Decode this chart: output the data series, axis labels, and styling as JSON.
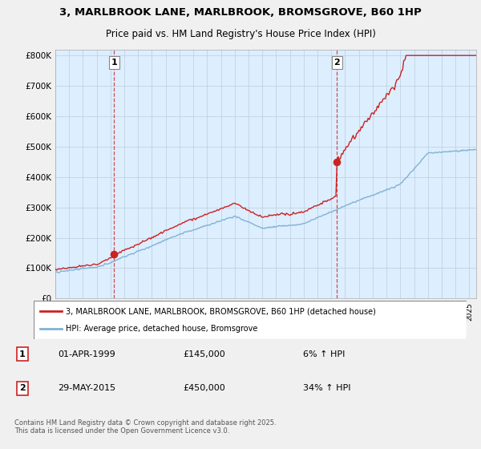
{
  "title_line1": "3, MARLBROOK LANE, MARLBROOK, BROMSGROVE, B60 1HP",
  "title_line2": "Price paid vs. HM Land Registry's House Price Index (HPI)",
  "hpi_color": "#7fb3d3",
  "price_color": "#cc2222",
  "bg_color": "#f0f0f0",
  "plot_bg_color": "#ddeeff",
  "grid_color": "#bbccdd",
  "purchase1_date": 1999.25,
  "purchase1_price": 145000,
  "purchase2_date": 2015.42,
  "purchase2_price": 450000,
  "vline_color": "#cc2222",
  "legend_line1": "3, MARLBROOK LANE, MARLBROOK, BROMSGROVE, B60 1HP (detached house)",
  "legend_line2": "HPI: Average price, detached house, Bromsgrove",
  "note1_label": "1",
  "note1_date": "01-APR-1999",
  "note1_price": "£145,000",
  "note1_pct": "6% ↑ HPI",
  "note2_label": "2",
  "note2_date": "29-MAY-2015",
  "note2_price": "£450,000",
  "note2_pct": "34% ↑ HPI",
  "footer": "Contains HM Land Registry data © Crown copyright and database right 2025.\nThis data is licensed under the Open Government Licence v3.0.",
  "xmin": 1995.0,
  "xmax": 2025.5,
  "ylim_min": 0,
  "ylim_max": 820000,
  "yticks": [
    0,
    100000,
    200000,
    300000,
    400000,
    500000,
    600000,
    700000,
    800000
  ],
  "ytick_labels": [
    "£0",
    "£100K",
    "£200K",
    "£300K",
    "£400K",
    "£500K",
    "£600K",
    "£700K",
    "£800K"
  ]
}
